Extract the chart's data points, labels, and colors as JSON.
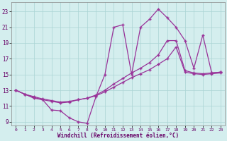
{
  "xlabel": "Windchill (Refroidissement éolien,°C)",
  "xlim": [
    -0.5,
    23.5
  ],
  "ylim": [
    8.5,
    24.2
  ],
  "xticks": [
    0,
    1,
    2,
    3,
    4,
    5,
    6,
    7,
    8,
    9,
    10,
    11,
    12,
    13,
    14,
    15,
    16,
    17,
    18,
    19,
    20,
    21,
    22,
    23
  ],
  "yticks": [
    9,
    11,
    13,
    15,
    17,
    19,
    21,
    23
  ],
  "background_color": "#d4eeee",
  "line_color": "#993399",
  "grid_color": "#aad4d4",
  "line1_x": [
    0,
    1,
    2,
    3,
    4,
    5,
    6,
    7,
    8,
    9,
    10,
    11,
    12,
    13,
    14,
    15,
    16,
    17,
    18,
    19,
    20,
    21,
    22,
    23
  ],
  "line1_y": [
    13.0,
    12.5,
    12.0,
    11.8,
    10.5,
    10.4,
    9.5,
    9.0,
    8.8,
    12.2,
    15.0,
    21.0,
    21.3,
    15.0,
    21.0,
    22.0,
    23.3,
    22.2,
    21.0,
    19.3,
    15.8,
    20.0,
    15.2,
    15.3
  ],
  "line2_x": [
    0,
    1,
    2,
    3,
    4,
    5,
    6,
    7,
    8,
    9,
    10,
    11,
    12,
    13,
    14,
    15,
    16,
    17,
    18,
    19,
    20,
    21,
    22,
    23
  ],
  "line2_y": [
    13.0,
    12.5,
    12.2,
    11.9,
    11.7,
    11.5,
    11.6,
    11.8,
    12.0,
    12.4,
    13.0,
    13.8,
    14.5,
    15.2,
    15.8,
    16.5,
    17.5,
    19.3,
    19.3,
    15.5,
    15.2,
    15.1,
    15.2,
    15.3
  ],
  "line3_x": [
    0,
    1,
    2,
    3,
    4,
    5,
    6,
    7,
    8,
    9,
    10,
    11,
    12,
    13,
    14,
    15,
    16,
    17,
    18,
    19,
    20,
    21,
    22,
    23
  ],
  "line3_y": [
    13.0,
    12.5,
    12.1,
    11.8,
    11.6,
    11.4,
    11.5,
    11.8,
    12.0,
    12.3,
    12.8,
    13.4,
    14.0,
    14.6,
    15.1,
    15.6,
    16.3,
    17.0,
    18.5,
    15.3,
    15.1,
    15.0,
    15.1,
    15.2
  ]
}
